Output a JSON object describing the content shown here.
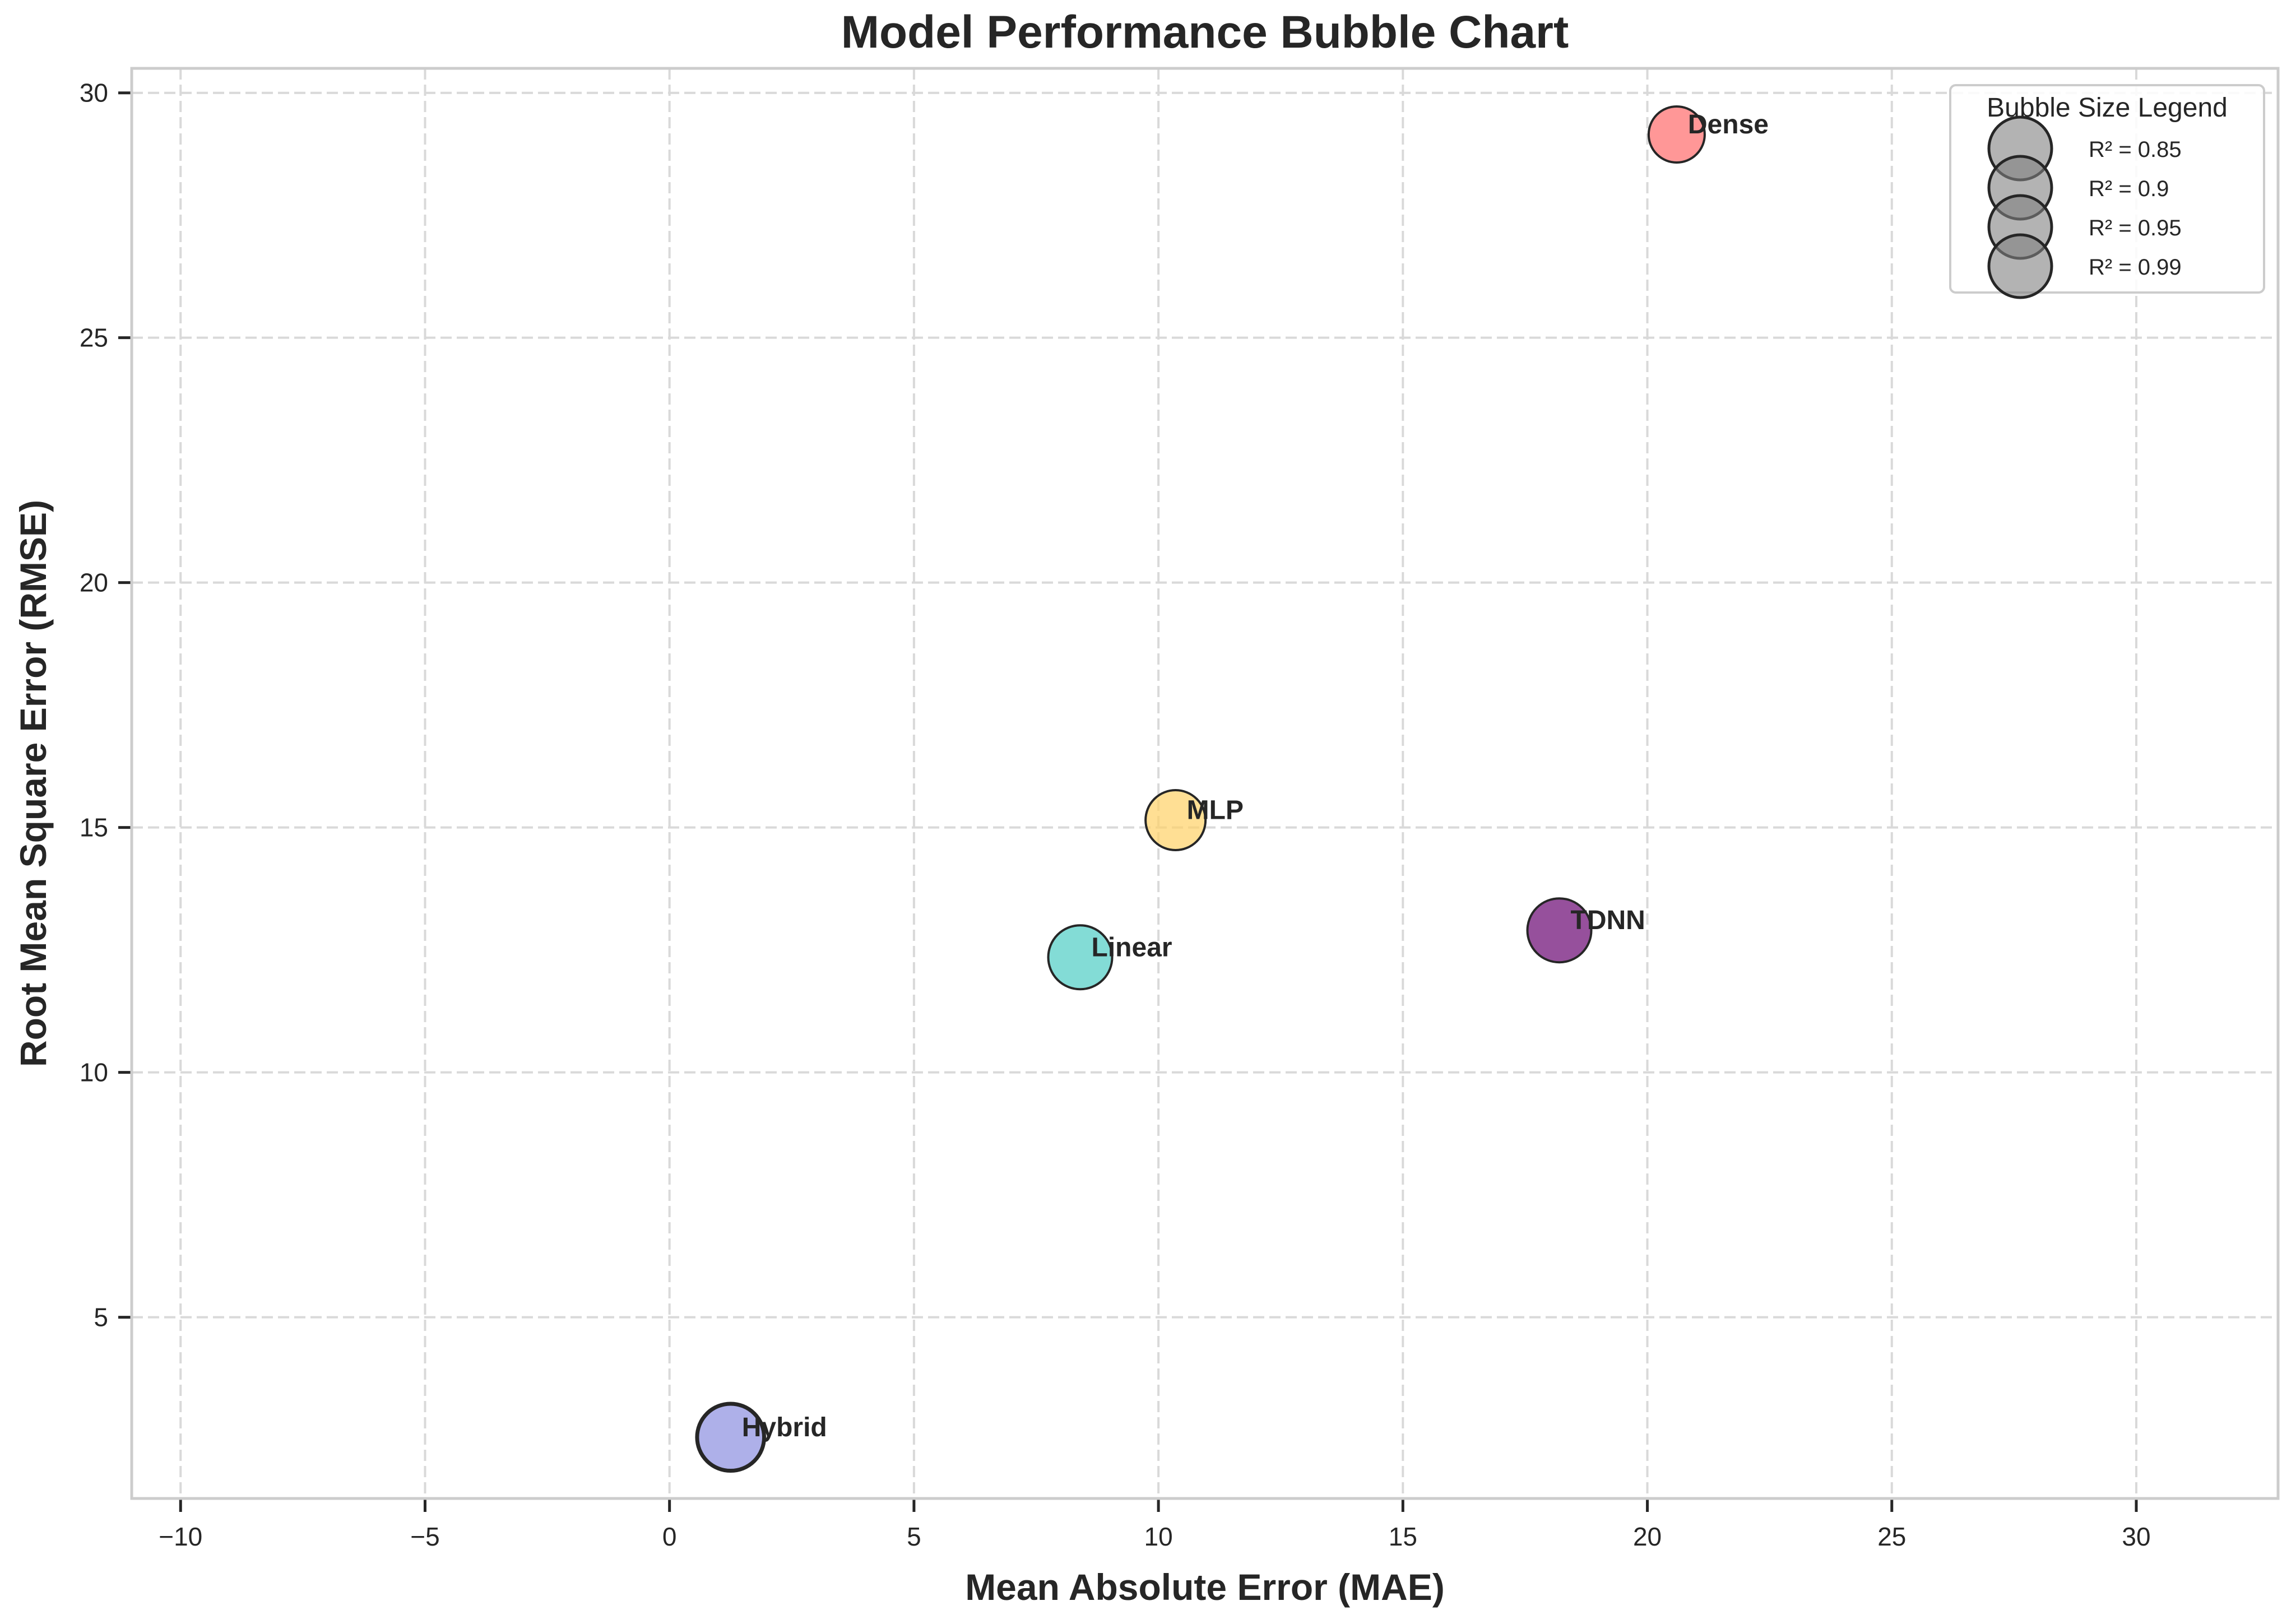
{
  "chart_data": {
    "type": "scatter",
    "title": "Model Performance Bubble Chart",
    "xlabel": "Mean Absolute Error (MAE)",
    "ylabel": "Root Mean Square Error (RMSE)",
    "xlim": [
      -11.0,
      32.9
    ],
    "ylim": [
      1.3,
      30.5
    ],
    "xticks": [
      -10,
      -5,
      0,
      5,
      10,
      15,
      20,
      25,
      30
    ],
    "yticks": [
      5,
      10,
      15,
      20,
      25,
      30
    ],
    "xtick_labels": [
      "−10",
      "−5",
      "0",
      "5",
      "10",
      "15",
      "20",
      "25",
      "30"
    ],
    "ytick_labels": [
      "5",
      "10",
      "15",
      "20",
      "25",
      "30"
    ],
    "grid": true,
    "grid_style": "dashed",
    "points": [
      {
        "label": "Dense",
        "x": 20.6,
        "y": 29.15,
        "r2": 0.85,
        "color": "#ff6b6b"
      },
      {
        "label": "MLP",
        "x": 10.35,
        "y": 15.15,
        "r2": 0.9,
        "color": "#ffd166"
      },
      {
        "label": "TDNN",
        "x": 18.2,
        "y": 12.9,
        "r2": 0.95,
        "color": "#6a0572"
      },
      {
        "label": "Linear",
        "x": 8.4,
        "y": 12.35,
        "r2": 0.95,
        "color": "#4ecdc4"
      },
      {
        "label": "Hybrid",
        "x": 1.25,
        "y": 2.55,
        "r2": 0.99,
        "color": "#8c8fe0"
      }
    ],
    "legend": {
      "title": "Bubble Size Legend",
      "placement": "top-right",
      "entries": [
        "R² = 0.85",
        "R² = 0.9",
        "R² = 0.95",
        "R² = 0.99"
      ],
      "values": [
        0.85,
        0.9,
        0.95,
        0.99
      ],
      "marker_color": "#808080"
    }
  }
}
